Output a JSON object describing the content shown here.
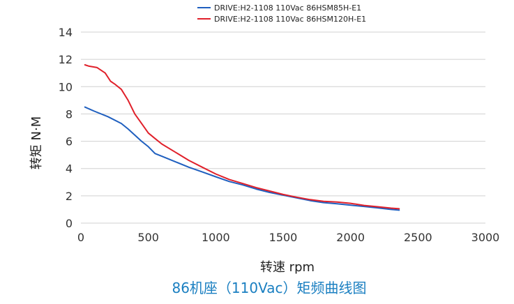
{
  "chart_data": {
    "type": "line",
    "title": "86机座（110Vac）矩频曲线图",
    "xlabel": "转速 rpm",
    "ylabel": "转矩 N·M",
    "xlim": [
      0,
      3000
    ],
    "ylim": [
      0,
      14
    ],
    "xticks": [
      0,
      500,
      1000,
      1500,
      2000,
      2500,
      3000
    ],
    "yticks": [
      0,
      2,
      4,
      6,
      8,
      10,
      12,
      14
    ],
    "grid": "horizontal",
    "legend_position": "top-center",
    "colors": {
      "title": "#1a7fc1",
      "series_1": "#1f5fbf",
      "series_2": "#e0202a"
    },
    "series": [
      {
        "name": "DRIVE:H2-1108 110Vac 86HSM85H-E1",
        "x": [
          30,
          100,
          200,
          300,
          350,
          450,
          500,
          550,
          600,
          700,
          800,
          900,
          1000,
          1100,
          1200,
          1300,
          1400,
          1500,
          1600,
          1700,
          1800,
          1900,
          2000,
          2100,
          2200,
          2300,
          2360
        ],
        "y": [
          8.5,
          8.2,
          7.8,
          7.3,
          6.9,
          6.0,
          5.6,
          5.1,
          4.9,
          4.5,
          4.1,
          3.75,
          3.4,
          3.05,
          2.8,
          2.5,
          2.25,
          2.05,
          1.85,
          1.65,
          1.5,
          1.42,
          1.32,
          1.22,
          1.12,
          1.0,
          0.95
        ]
      },
      {
        "name": "DRIVE:H2-1108 110Vac 86HSM120H-E1",
        "x": [
          30,
          60,
          120,
          180,
          220,
          250,
          300,
          350,
          400,
          450,
          500,
          550,
          600,
          700,
          800,
          900,
          1000,
          1100,
          1200,
          1300,
          1400,
          1500,
          1600,
          1700,
          1800,
          1900,
          2000,
          2100,
          2200,
          2300,
          2360
        ],
        "y": [
          11.6,
          11.5,
          11.4,
          11.0,
          10.4,
          10.2,
          9.8,
          9.0,
          8.0,
          7.3,
          6.6,
          6.2,
          5.8,
          5.2,
          4.6,
          4.1,
          3.6,
          3.2,
          2.9,
          2.6,
          2.35,
          2.1,
          1.9,
          1.72,
          1.6,
          1.55,
          1.45,
          1.3,
          1.2,
          1.1,
          1.05
        ]
      }
    ]
  }
}
